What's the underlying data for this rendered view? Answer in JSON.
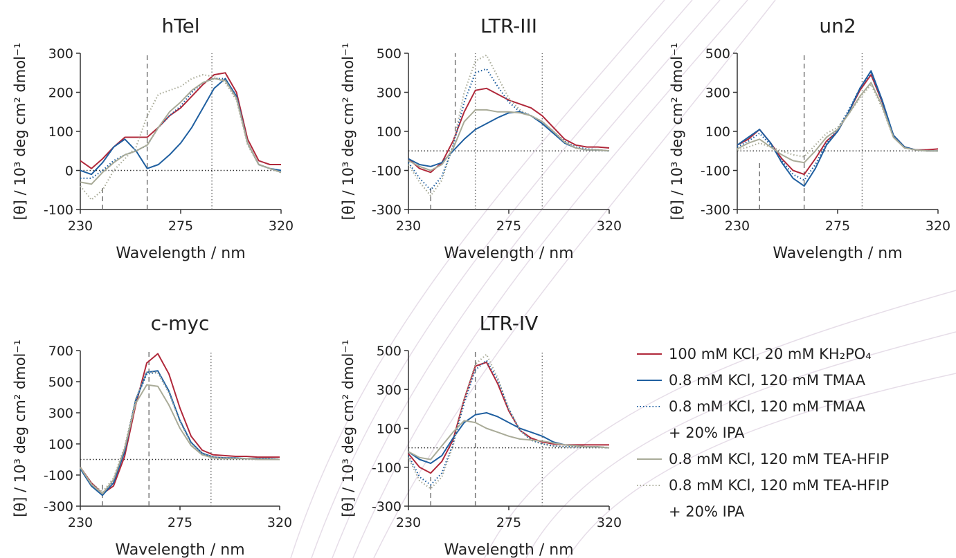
{
  "chart_data": [
    {
      "type": "line",
      "title": "hTel",
      "xlabel": "Wavelength / nm",
      "ylabel": "[θ] / 10³ deg cm² dmol⁻¹",
      "xlim": [
        230,
        320
      ],
      "xticks": [
        230,
        275,
        320
      ],
      "ylim": [
        -100,
        300
      ],
      "yticks": [
        300,
        200,
        100,
        0,
        -100
      ],
      "hline": 0,
      "vlines": [
        {
          "x": 260,
          "style": "dashed",
          "y": [
            -100,
            300
          ]
        },
        {
          "x": 289,
          "style": "dotted",
          "y": [
            -100,
            300
          ]
        },
        {
          "x": 240,
          "style": "dashed",
          "y": [
            -100,
            -40
          ]
        }
      ],
      "x": [
        230,
        235,
        240,
        245,
        250,
        255,
        260,
        265,
        270,
        275,
        280,
        285,
        290,
        295,
        300,
        305,
        310,
        315,
        320
      ],
      "series": [
        {
          "name": "100 mM KCl, 20 mM KH₂PO₄",
          "color": "#b0283a",
          "style": "solid",
          "values": [
            25,
            5,
            30,
            60,
            85,
            85,
            85,
            110,
            140,
            160,
            190,
            220,
            245,
            250,
            200,
            80,
            25,
            15,
            15
          ]
        },
        {
          "name": "0.8 mM KCl, 120 mM TMAA",
          "color": "#1f5fa0",
          "style": "solid",
          "values": [
            0,
            -10,
            20,
            60,
            80,
            50,
            5,
            15,
            40,
            70,
            110,
            160,
            210,
            235,
            190,
            70,
            15,
            5,
            0
          ]
        },
        {
          "name": "0.8 mM KCl, 120 mM TMAA\n+ 20% IPA",
          "color": "#1f5fa0",
          "style": "dotted",
          "values": [
            -20,
            -20,
            0,
            25,
            40,
            50,
            65,
            110,
            140,
            165,
            200,
            225,
            235,
            235,
            190,
            70,
            15,
            5,
            -5
          ]
        },
        {
          "name": "0.8 mM KCl, 120 mM TEA-HFIP",
          "color": "#a9ab98",
          "style": "solid",
          "values": [
            -30,
            -35,
            -5,
            20,
            40,
            50,
            65,
            110,
            150,
            175,
            205,
            225,
            235,
            230,
            185,
            70,
            15,
            5,
            -5
          ]
        },
        {
          "name": "0.8 mM KCl, 120 mM TEA-HFIP\n+ 20% IPA",
          "color": "#a9ab98",
          "style": "dotted",
          "values": [
            -40,
            -75,
            -50,
            0,
            30,
            60,
            140,
            195,
            205,
            215,
            235,
            245,
            240,
            225,
            180,
            65,
            15,
            5,
            -5
          ]
        }
      ]
    },
    {
      "type": "line",
      "title": "LTR-III",
      "xlabel": "Wavelength / nm",
      "ylabel": "[θ] / 10³ deg cm² dmol⁻¹",
      "xlim": [
        230,
        320
      ],
      "xticks": [
        230,
        275,
        320
      ],
      "ylim": [
        -300,
        500
      ],
      "yticks": [
        500,
        300,
        100,
        -100,
        -300
      ],
      "hline": 0,
      "vlines": [
        {
          "x": 251,
          "style": "dashed",
          "y": [
            100,
            500
          ]
        },
        {
          "x": 260,
          "style": "dotted",
          "y": [
            -300,
            500
          ]
        },
        {
          "x": 290,
          "style": "dotted",
          "y": [
            -300,
            500
          ]
        },
        {
          "x": 240,
          "style": "dashed",
          "y": [
            -300,
            -180
          ]
        }
      ],
      "x": [
        230,
        235,
        240,
        245,
        250,
        255,
        260,
        265,
        270,
        275,
        280,
        285,
        290,
        295,
        300,
        305,
        310,
        315,
        320
      ],
      "series": [
        {
          "color": "#b0283a",
          "style": "solid",
          "values": [
            -40,
            -90,
            -110,
            -60,
            50,
            200,
            310,
            320,
            290,
            260,
            240,
            220,
            180,
            120,
            60,
            30,
            20,
            20,
            15
          ]
        },
        {
          "color": "#1f5fa0",
          "style": "solid",
          "values": [
            -40,
            -70,
            -80,
            -60,
            0,
            60,
            110,
            140,
            170,
            195,
            200,
            180,
            140,
            90,
            40,
            15,
            5,
            5,
            0
          ]
        },
        {
          "color": "#1f5fa0",
          "style": "dotted",
          "values": [
            -60,
            -140,
            -200,
            -130,
            20,
            250,
            400,
            420,
            330,
            250,
            200,
            180,
            150,
            100,
            50,
            20,
            10,
            5,
            0
          ]
        },
        {
          "color": "#a9ab98",
          "style": "solid",
          "values": [
            -50,
            -80,
            -100,
            -70,
            10,
            150,
            210,
            210,
            200,
            200,
            195,
            180,
            150,
            100,
            45,
            15,
            5,
            5,
            0
          ]
        },
        {
          "color": "#a9ab98",
          "style": "dotted",
          "values": [
            -70,
            -160,
            -230,
            -150,
            30,
            300,
            460,
            490,
            380,
            270,
            210,
            180,
            150,
            100,
            45,
            15,
            5,
            5,
            0
          ]
        }
      ]
    },
    {
      "type": "line",
      "title": "un2",
      "xlabel": "Wavelength / nm",
      "ylabel": "[θ] / 10³ deg cm² dmol⁻¹",
      "xlim": [
        230,
        320
      ],
      "xticks": [
        230,
        275,
        320
      ],
      "ylim": [
        -300,
        500
      ],
      "yticks": [
        500,
        300,
        100,
        -100,
        -300
      ],
      "hline": 0,
      "vlines": [
        {
          "x": 260,
          "style": "dashed",
          "y": [
            -300,
            500
          ]
        },
        {
          "x": 286,
          "style": "dotted",
          "y": [
            -300,
            500
          ]
        },
        {
          "x": 240,
          "style": "dashed",
          "y": [
            -300,
            -50
          ]
        }
      ],
      "x": [
        230,
        235,
        240,
        245,
        250,
        255,
        260,
        265,
        270,
        275,
        280,
        285,
        290,
        295,
        300,
        305,
        310,
        315,
        320
      ],
      "series": [
        {
          "color": "#b0283a",
          "style": "solid",
          "values": [
            30,
            60,
            110,
            40,
            -40,
            -100,
            -120,
            -40,
            50,
            100,
            200,
            310,
            390,
            250,
            80,
            20,
            5,
            5,
            10
          ]
        },
        {
          "color": "#1f5fa0",
          "style": "solid",
          "values": [
            30,
            70,
            110,
            40,
            -60,
            -140,
            -180,
            -90,
            30,
            100,
            200,
            320,
            410,
            260,
            80,
            20,
            5,
            0,
            0
          ]
        },
        {
          "color": "#1f5fa0",
          "style": "dotted",
          "values": [
            20,
            50,
            90,
            30,
            -50,
            -120,
            -150,
            -70,
            40,
            110,
            210,
            320,
            400,
            250,
            80,
            20,
            5,
            0,
            0
          ]
        },
        {
          "color": "#a9ab98",
          "style": "solid",
          "values": [
            10,
            40,
            60,
            20,
            -20,
            -50,
            -60,
            0,
            70,
            110,
            190,
            280,
            350,
            230,
            70,
            15,
            5,
            0,
            0
          ]
        },
        {
          "color": "#a9ab98",
          "style": "dotted",
          "values": [
            5,
            20,
            40,
            20,
            0,
            -20,
            -30,
            30,
            90,
            120,
            190,
            270,
            340,
            220,
            70,
            15,
            5,
            0,
            0
          ]
        }
      ]
    },
    {
      "type": "line",
      "title": "c-myc",
      "xlabel": "Wavelength / nm",
      "ylabel": "[θ] / 10³ deg cm² dmol⁻¹",
      "xlim": [
        230,
        320
      ],
      "xticks": [
        230,
        275,
        320
      ],
      "ylim": [
        -300,
        700
      ],
      "yticks": [
        700,
        500,
        300,
        100,
        -100,
        -300
      ],
      "hline": 0,
      "vlines": [
        {
          "x": 261,
          "style": "dashed",
          "y": [
            -300,
            700
          ]
        },
        {
          "x": 289,
          "style": "dotted",
          "y": [
            -300,
            700
          ]
        },
        {
          "x": 240,
          "style": "dashed",
          "y": [
            -300,
            -150
          ]
        }
      ],
      "x": [
        230,
        235,
        240,
        245,
        250,
        255,
        260,
        265,
        270,
        275,
        280,
        285,
        290,
        295,
        300,
        305,
        310,
        315,
        320
      ],
      "series": [
        {
          "color": "#b0283a",
          "style": "solid",
          "values": [
            -50,
            -150,
            -220,
            -170,
            20,
            350,
            620,
            680,
            550,
            330,
            150,
            60,
            30,
            25,
            20,
            20,
            15,
            15,
            15
          ]
        },
        {
          "color": "#1f5fa0",
          "style": "solid",
          "values": [
            -60,
            -170,
            -230,
            -150,
            50,
            380,
            560,
            570,
            440,
            250,
            110,
            40,
            15,
            10,
            10,
            5,
            5,
            5,
            0
          ]
        },
        {
          "color": "#1f5fa0",
          "style": "dotted",
          "values": [
            -60,
            -160,
            -220,
            -140,
            60,
            380,
            550,
            560,
            430,
            250,
            110,
            40,
            15,
            10,
            10,
            5,
            5,
            5,
            0
          ]
        },
        {
          "color": "#a9ab98",
          "style": "solid",
          "values": [
            -50,
            -160,
            -220,
            -130,
            70,
            360,
            480,
            470,
            350,
            200,
            90,
            30,
            10,
            5,
            5,
            5,
            0,
            0,
            0
          ]
        },
        {
          "color": "#a9ab98",
          "style": "dotted",
          "values": [
            -50,
            -150,
            -210,
            -120,
            80,
            390,
            560,
            560,
            430,
            240,
            100,
            35,
            15,
            10,
            10,
            5,
            5,
            5,
            0
          ]
        }
      ]
    },
    {
      "type": "line",
      "title": "LTR-IV",
      "xlabel": "Wavelength / nm",
      "ylabel": "[θ] / 10³ deg cm² dmol⁻¹",
      "xlim": [
        230,
        320
      ],
      "xticks": [
        230,
        275,
        320
      ],
      "ylim": [
        -300,
        500
      ],
      "yticks": [
        500,
        300,
        100,
        -100,
        -300
      ],
      "hline": 0,
      "vlines": [
        {
          "x": 260,
          "style": "dashed",
          "y": [
            -300,
            500
          ]
        },
        {
          "x": 290,
          "style": "dotted",
          "y": [
            -300,
            500
          ]
        },
        {
          "x": 240,
          "style": "dashed",
          "y": [
            -300,
            -150
          ]
        }
      ],
      "x": [
        230,
        235,
        240,
        245,
        250,
        255,
        260,
        265,
        270,
        275,
        280,
        285,
        290,
        295,
        300,
        305,
        310,
        315,
        320
      ],
      "series": [
        {
          "color": "#b0283a",
          "style": "solid",
          "values": [
            -30,
            -100,
            -130,
            -70,
            40,
            250,
            420,
            440,
            330,
            190,
            90,
            50,
            30,
            20,
            15,
            15,
            15,
            15,
            15
          ]
        },
        {
          "color": "#1f5fa0",
          "style": "solid",
          "values": [
            -20,
            -60,
            -80,
            -40,
            50,
            130,
            170,
            180,
            160,
            130,
            100,
            80,
            60,
            30,
            15,
            10,
            5,
            5,
            0
          ]
        },
        {
          "color": "#1f5fa0",
          "style": "dotted",
          "values": [
            -40,
            -150,
            -190,
            -130,
            20,
            230,
            400,
            450,
            350,
            200,
            90,
            40,
            20,
            10,
            5,
            5,
            5,
            5,
            0
          ]
        },
        {
          "color": "#a9ab98",
          "style": "solid",
          "values": [
            -20,
            -50,
            -60,
            10,
            80,
            140,
            130,
            100,
            80,
            60,
            45,
            40,
            35,
            25,
            15,
            10,
            5,
            5,
            0
          ]
        },
        {
          "color": "#a9ab98",
          "style": "dotted",
          "values": [
            -50,
            -170,
            -210,
            -150,
            10,
            250,
            430,
            480,
            360,
            200,
            90,
            40,
            20,
            10,
            5,
            5,
            5,
            5,
            0
          ]
        }
      ]
    }
  ]
}
